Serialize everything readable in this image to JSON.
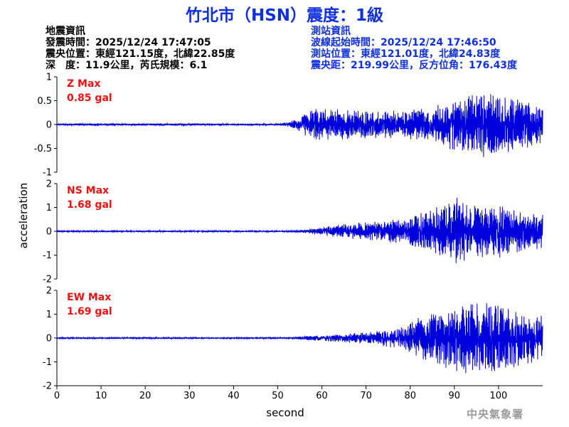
{
  "header": {
    "title": "竹北市（HSN）震度：1級"
  },
  "earthquake_info": {
    "heading": "地震資訊",
    "origin_time": "發震時間：2025/12/24 17:47:05",
    "epicenter": "震央位置：東經121.15度，北緯22.85度",
    "depth_magnitude": "深　度：11.9公里，芮氏規模：6.1"
  },
  "station_info": {
    "heading": "測站資訊",
    "wave_start": "波線起始時間：2025/12/24 17:46:50",
    "station_location": "測站位置：東經121.01度，北緯24.83度",
    "distance_azimuth": "震央距：219.99公里，反方位角：176.43度"
  },
  "watermark": "中央氣象署",
  "colors": {
    "title": "#1030e0",
    "trace": "#0000dd",
    "max_label": "#ee1111",
    "station_info": "#1030e0"
  },
  "chart_data": {
    "type": "line",
    "xlabel": "second",
    "ylabel": "acceleration",
    "xlim": [
      0,
      110
    ],
    "x_ticks": [
      "0",
      "10",
      "20",
      "30",
      "40",
      "50",
      "60",
      "70",
      "80",
      "90",
      "100"
    ],
    "panels": [
      {
        "name": "Z",
        "max_title": "Z Max",
        "max_value": "0.85 gal",
        "ylim": [
          -1,
          1
        ],
        "y_ticks": [
          "1",
          "0.5",
          "0",
          "-0.5",
          "-1"
        ],
        "envelope": [
          [
            0,
            0.02
          ],
          [
            50,
            0.02
          ],
          [
            52,
            0.04
          ],
          [
            55,
            0.15
          ],
          [
            58,
            0.35
          ],
          [
            62,
            0.32
          ],
          [
            70,
            0.3
          ],
          [
            78,
            0.3
          ],
          [
            85,
            0.4
          ],
          [
            90,
            0.55
          ],
          [
            94,
            0.65
          ],
          [
            98,
            0.72
          ],
          [
            103,
            0.6
          ],
          [
            108,
            0.45
          ],
          [
            110,
            0.4
          ]
        ]
      },
      {
        "name": "NS",
        "max_title": "NS Max",
        "max_value": "1.68 gal",
        "ylim": [
          -2,
          2
        ],
        "y_ticks": [
          "2",
          "1",
          "0",
          "-1",
          "-2"
        ],
        "envelope": [
          [
            0,
            0.03
          ],
          [
            52,
            0.03
          ],
          [
            56,
            0.06
          ],
          [
            60,
            0.2
          ],
          [
            65,
            0.3
          ],
          [
            70,
            0.4
          ],
          [
            78,
            0.55
          ],
          [
            83,
            0.85
          ],
          [
            88,
            1.2
          ],
          [
            90,
            1.5
          ],
          [
            95,
            1.1
          ],
          [
            100,
            1.2
          ],
          [
            105,
            0.9
          ],
          [
            110,
            0.8
          ]
        ]
      },
      {
        "name": "EW",
        "max_title": "EW Max",
        "max_value": "1.69 gal",
        "ylim": [
          -2,
          2
        ],
        "y_ticks": [
          "2",
          "1",
          "0",
          "-1",
          "-2"
        ],
        "envelope": [
          [
            0,
            0.03
          ],
          [
            52,
            0.03
          ],
          [
            56,
            0.08
          ],
          [
            62,
            0.15
          ],
          [
            70,
            0.25
          ],
          [
            78,
            0.45
          ],
          [
            82,
            0.9
          ],
          [
            87,
            1.2
          ],
          [
            92,
            1.5
          ],
          [
            97,
            1.6
          ],
          [
            102,
            1.35
          ],
          [
            107,
            1.1
          ],
          [
            110,
            1.0
          ]
        ]
      }
    ]
  }
}
